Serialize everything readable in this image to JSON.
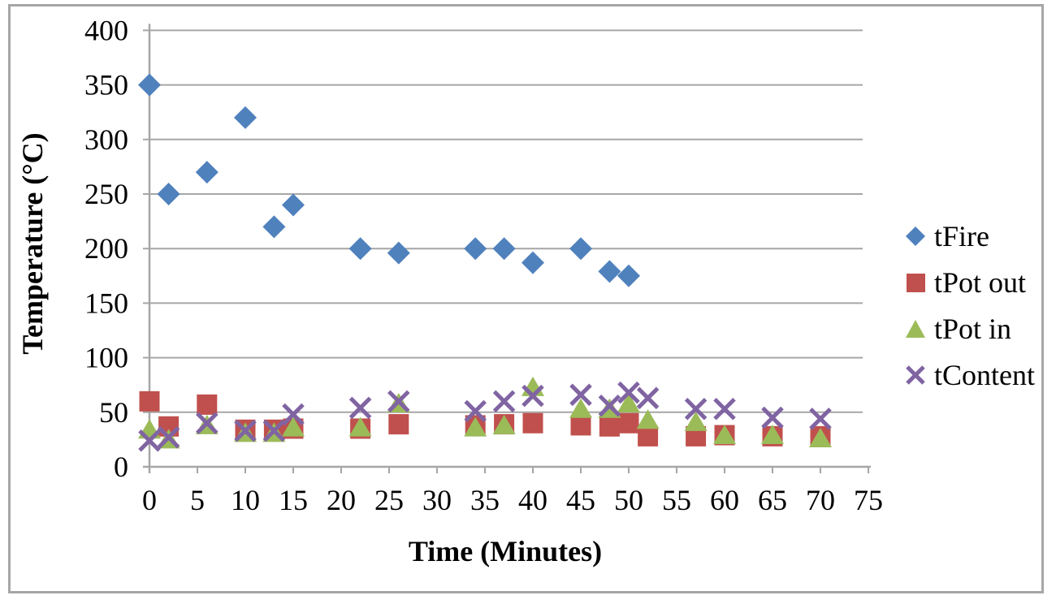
{
  "chart_data": {
    "type": "scatter",
    "title": "",
    "xlabel": "Time (Minutes)",
    "ylabel": "Temperature (°C)",
    "xlim": [
      0,
      75
    ],
    "ylim": [
      0,
      400
    ],
    "x_ticks": [
      0,
      5,
      10,
      15,
      20,
      25,
      30,
      35,
      40,
      45,
      50,
      55,
      60,
      65,
      70,
      75
    ],
    "y_ticks": [
      0,
      50,
      100,
      150,
      200,
      250,
      300,
      350,
      400
    ],
    "grid": "horizontal",
    "legend_position": "right",
    "axis_color": "#a6a6a6",
    "text_color": "#000000",
    "series": [
      {
        "name": "tFire",
        "marker": "diamond",
        "color": "#4F81BD",
        "x": [
          0,
          2,
          6,
          10,
          13,
          15,
          22,
          26,
          34,
          37,
          40,
          45,
          48,
          50
        ],
        "y": [
          350,
          250,
          270,
          320,
          220,
          240,
          200,
          196,
          200,
          200,
          187,
          200,
          179,
          175
        ]
      },
      {
        "name": "tPot out",
        "marker": "square",
        "color": "#C0504D",
        "x": [
          0,
          2,
          6,
          10,
          13,
          15,
          22,
          26,
          34,
          37,
          40,
          45,
          48,
          50,
          52,
          57,
          60,
          65,
          70
        ],
        "y": [
          60,
          37,
          57,
          34,
          34,
          35,
          35,
          39,
          38,
          39,
          40,
          38,
          37,
          40,
          28,
          28,
          29,
          28,
          28
        ]
      },
      {
        "name": "tPot in",
        "marker": "triangle",
        "color": "#9BBB59",
        "x": [
          0,
          2,
          6,
          10,
          13,
          15,
          22,
          26,
          34,
          37,
          40,
          45,
          48,
          50,
          52,
          57,
          60,
          65,
          70
        ],
        "y": [
          34,
          25,
          38,
          31,
          31,
          36,
          36,
          58,
          36,
          38,
          73,
          53,
          53,
          58,
          43,
          41,
          29,
          29,
          26
        ]
      },
      {
        "name": "tContent",
        "marker": "x",
        "color": "#8064A2",
        "x": [
          0,
          2,
          6,
          10,
          13,
          15,
          22,
          26,
          34,
          37,
          40,
          45,
          48,
          50,
          52,
          57,
          60,
          65,
          70
        ],
        "y": [
          24,
          27,
          40,
          33,
          33,
          48,
          54,
          60,
          51,
          60,
          65,
          66,
          56,
          68,
          63,
          53,
          53,
          45,
          44
        ]
      }
    ]
  }
}
